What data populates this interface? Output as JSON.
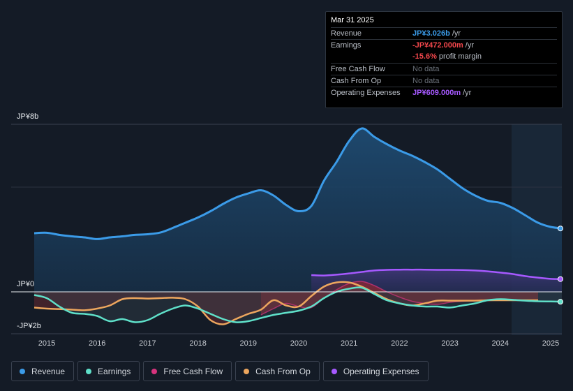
{
  "tooltip": {
    "date": "Mar 31 2025",
    "rows": [
      {
        "label": "Revenue",
        "value": "JP¥3.026b",
        "unit": "/yr"
      },
      {
        "label": "Earnings",
        "value": "-JP¥472.000m",
        "unit": "/yr"
      },
      {
        "label": "",
        "value": "-15.6%",
        "unit": "profit margin"
      },
      {
        "label": "Free Cash Flow",
        "value": "No data",
        "unit": ""
      },
      {
        "label": "Cash From Op",
        "value": "No data",
        "unit": ""
      },
      {
        "label": "Operating Expenses",
        "value": "JP¥609.000m",
        "unit": "/yr"
      }
    ]
  },
  "colors": {
    "revenue": "#3b9be8",
    "earnings": "#5fe0c9",
    "free_cash_flow": "#d6337d",
    "cash_from_op": "#eda65e",
    "operating_expenses": "#a659ff"
  },
  "legend": [
    {
      "label": "Revenue",
      "color": "#3b9be8"
    },
    {
      "label": "Earnings",
      "color": "#5fe0c9"
    },
    {
      "label": "Free Cash Flow",
      "color": "#d6337d"
    },
    {
      "label": "Cash From Op",
      "color": "#eda65e"
    },
    {
      "label": "Operating Expenses",
      "color": "#a659ff"
    }
  ],
  "chart_data": {
    "type": "line",
    "title": "",
    "xlabel": "",
    "ylabel": "",
    "ylim": [
      -2,
      8
    ],
    "y_tick_labels": [
      "JP¥8b",
      "JP¥0",
      "-JP¥2b"
    ],
    "y_ticks": [
      8,
      0,
      -2
    ],
    "x_tick_labels": [
      "2015",
      "2016",
      "2017",
      "2018",
      "2019",
      "2020",
      "2021",
      "2022",
      "2023",
      "2024",
      "2025"
    ],
    "x_ticks": [
      2015,
      2016,
      2017,
      2018,
      2019,
      2020,
      2021,
      2022,
      2023,
      2024,
      2025
    ],
    "xlim": [
      2014.3,
      2025.3
    ],
    "forecast_start": 2024.25,
    "series": [
      {
        "name": "Revenue",
        "unit": "JP¥b",
        "x": [
          2014.75,
          2015.0,
          2015.25,
          2015.5,
          2015.75,
          2016.0,
          2016.25,
          2016.5,
          2016.75,
          2017.0,
          2017.25,
          2017.5,
          2017.75,
          2018.0,
          2018.25,
          2018.5,
          2018.75,
          2019.0,
          2019.25,
          2019.5,
          2019.75,
          2020.0,
          2020.25,
          2020.5,
          2020.75,
          2021.0,
          2021.25,
          2021.5,
          2021.75,
          2022.0,
          2022.25,
          2022.5,
          2022.75,
          2023.0,
          2023.25,
          2023.5,
          2023.75,
          2024.0,
          2024.25,
          2024.5,
          2024.75,
          2025.0,
          2025.25
        ],
        "values": [
          2.8,
          2.82,
          2.72,
          2.65,
          2.6,
          2.52,
          2.6,
          2.65,
          2.72,
          2.75,
          2.83,
          3.05,
          3.3,
          3.55,
          3.85,
          4.2,
          4.5,
          4.7,
          4.85,
          4.6,
          4.15,
          3.85,
          4.1,
          5.3,
          6.2,
          7.2,
          7.8,
          7.4,
          7.05,
          6.75,
          6.5,
          6.2,
          5.85,
          5.4,
          4.95,
          4.6,
          4.35,
          4.25,
          4.0,
          3.65,
          3.3,
          3.1,
          3.026
        ]
      },
      {
        "name": "Earnings",
        "unit": "JP¥b",
        "x": [
          2014.75,
          2015.0,
          2015.25,
          2015.5,
          2015.75,
          2016.0,
          2016.25,
          2016.5,
          2016.75,
          2017.0,
          2017.25,
          2017.5,
          2017.75,
          2018.0,
          2018.25,
          2018.5,
          2018.75,
          2019.0,
          2019.25,
          2019.5,
          2019.75,
          2020.0,
          2020.25,
          2020.5,
          2020.75,
          2021.0,
          2021.25,
          2021.5,
          2021.75,
          2022.0,
          2022.25,
          2022.5,
          2022.75,
          2023.0,
          2023.25,
          2023.5,
          2023.75,
          2024.0,
          2024.25,
          2024.5,
          2024.75,
          2025.0,
          2025.25
        ],
        "values": [
          -0.15,
          -0.3,
          -0.7,
          -1.0,
          -1.05,
          -1.15,
          -1.4,
          -1.3,
          -1.45,
          -1.35,
          -1.05,
          -0.8,
          -0.65,
          -0.8,
          -1.05,
          -1.3,
          -1.45,
          -1.4,
          -1.25,
          -1.1,
          -1.0,
          -0.9,
          -0.7,
          -0.3,
          0.0,
          0.15,
          0.2,
          -0.1,
          -0.4,
          -0.55,
          -0.65,
          -0.7,
          -0.7,
          -0.75,
          -0.65,
          -0.55,
          -0.4,
          -0.35,
          -0.38,
          -0.42,
          -0.45,
          -0.46,
          -0.472
        ]
      },
      {
        "name": "Free Cash Flow",
        "unit": "JP¥b",
        "x": [
          2019.25,
          2019.5,
          2019.75,
          2020.0,
          2020.25,
          2020.5,
          2020.75,
          2021.0,
          2021.25,
          2021.5,
          2021.75,
          2022.0,
          2022.25,
          2022.5,
          2022.75,
          2023.0,
          2023.25,
          2023.5,
          2023.75,
          2024.0,
          2024.25,
          2024.5,
          2024.75
        ],
        "values": [
          -1.1,
          -0.8,
          -0.55,
          -0.7,
          -0.75,
          -0.3,
          0.1,
          0.4,
          0.5,
          0.3,
          0.0,
          -0.25,
          -0.45,
          -0.55,
          -0.6,
          -0.5,
          -0.45,
          -0.42,
          -0.42,
          -0.4,
          -0.4,
          -0.4,
          -0.4
        ]
      },
      {
        "name": "Cash From Op",
        "unit": "JP¥b",
        "x": [
          2014.75,
          2015.0,
          2015.25,
          2015.5,
          2015.75,
          2016.0,
          2016.25,
          2016.5,
          2016.75,
          2017.0,
          2017.25,
          2017.5,
          2017.75,
          2018.0,
          2018.25,
          2018.5,
          2018.75,
          2019.0,
          2019.25,
          2019.5,
          2019.75,
          2020.0,
          2020.25,
          2020.5,
          2020.75,
          2021.0,
          2021.25,
          2021.5,
          2021.75,
          2022.0,
          2022.25,
          2022.5,
          2022.75,
          2023.0,
          2023.25,
          2023.5,
          2023.75,
          2024.0,
          2024.25,
          2024.5,
          2024.75
        ],
        "values": [
          -0.75,
          -0.8,
          -0.82,
          -0.85,
          -0.88,
          -0.8,
          -0.65,
          -0.35,
          -0.3,
          -0.32,
          -0.3,
          -0.28,
          -0.35,
          -0.7,
          -1.35,
          -1.55,
          -1.3,
          -1.05,
          -0.85,
          -0.4,
          -0.65,
          -0.7,
          -0.2,
          0.25,
          0.45,
          0.45,
          0.25,
          -0.05,
          -0.35,
          -0.55,
          -0.65,
          -0.55,
          -0.42,
          -0.42,
          -0.42,
          -0.42,
          -0.4,
          -0.4,
          -0.4,
          -0.4,
          -0.4
        ]
      },
      {
        "name": "Operating Expenses",
        "unit": "JP¥b",
        "x": [
          2020.25,
          2020.5,
          2020.75,
          2021.0,
          2021.25,
          2021.5,
          2021.75,
          2022.0,
          2022.25,
          2022.5,
          2022.75,
          2023.0,
          2023.25,
          2023.5,
          2023.75,
          2024.0,
          2024.25,
          2024.5,
          2024.75,
          2025.0,
          2025.25
        ],
        "values": [
          0.8,
          0.78,
          0.82,
          0.88,
          0.95,
          1.02,
          1.05,
          1.06,
          1.06,
          1.06,
          1.05,
          1.05,
          1.04,
          1.02,
          0.98,
          0.92,
          0.85,
          0.75,
          0.68,
          0.62,
          0.609
        ]
      }
    ]
  }
}
